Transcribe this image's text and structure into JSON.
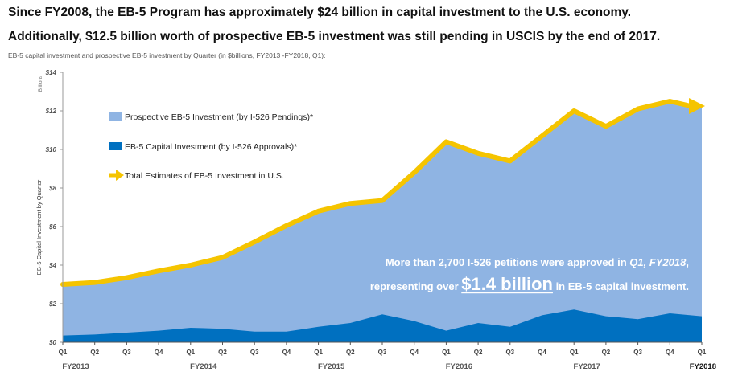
{
  "headline": {
    "line1": "Since FY2008, the EB-5 Program has approximately $24  billion in capital investment to the U.S. economy.",
    "line2": "Additionally, $12.5 billion worth of prospective EB-5 investment was still pending in USCIS by the end of 2017."
  },
  "subtitle": "EB-5 capital investment and prospective EB-5 investment by Quarter (in $billions, FY2013 -FY2018, Q1):",
  "colors": {
    "prospective": "#8fb4e3",
    "capital": "#0070c0",
    "total": "#f5c400",
    "text_dark": "#111111"
  },
  "chart_data": {
    "type": "area",
    "title": "",
    "xlabel": "",
    "ylabel": "EB-5 Capital Investment by Quarter",
    "y_unit_label": "Billions",
    "ylim": [
      0,
      14
    ],
    "yticks": [
      "$0",
      "$2",
      "$4",
      "$6",
      "$8",
      "$10",
      "$12",
      "$14"
    ],
    "ytick_values": [
      0,
      2,
      4,
      6,
      8,
      10,
      12,
      14
    ],
    "grid": false,
    "legend_position": "top-left",
    "categories": [
      "Q1",
      "Q2",
      "Q3",
      "Q4",
      "Q1",
      "Q2",
      "Q3",
      "Q4",
      "Q1",
      "Q2",
      "Q3",
      "Q4",
      "Q1",
      "Q2",
      "Q3",
      "Q4",
      "Q1",
      "Q2",
      "Q3",
      "Q4",
      "Q1"
    ],
    "fiscal_years": [
      {
        "label": "FY2013",
        "start_index": 0
      },
      {
        "label": "FY2014",
        "start_index": 4
      },
      {
        "label": "FY2015",
        "start_index": 8
      },
      {
        "label": "FY2016",
        "start_index": 12
      },
      {
        "label": "FY2017",
        "start_index": 16
      },
      {
        "label": "FY2018",
        "start_index": 20
      }
    ],
    "series": [
      {
        "name": "Prospective EB-5 Investment (by I-526 Pendings)*",
        "style": "area",
        "values": [
          2.65,
          2.7,
          2.85,
          3.1,
          3.25,
          3.7,
          4.65,
          5.5,
          6.0,
          6.2,
          5.9,
          7.7,
          9.8,
          8.8,
          8.6,
          9.3,
          10.3,
          9.85,
          10.9,
          11.0,
          10.9
        ]
      },
      {
        "name": "EB-5 Capital Investment (by I-526 Approvals)*",
        "style": "area",
        "values": [
          0.35,
          0.4,
          0.5,
          0.6,
          0.75,
          0.7,
          0.55,
          0.55,
          0.8,
          1.0,
          1.45,
          1.1,
          0.6,
          1.0,
          0.8,
          1.4,
          1.7,
          1.35,
          1.2,
          1.5,
          1.35
        ]
      },
      {
        "name": "Total Estimates of EB-5 Investment in U.S.",
        "style": "line-arrow",
        "values": [
          3.0,
          3.1,
          3.35,
          3.7,
          4.0,
          4.4,
          5.2,
          6.05,
          6.8,
          7.2,
          7.35,
          8.8,
          10.4,
          9.8,
          9.4,
          10.7,
          12.0,
          11.2,
          12.1,
          12.5,
          12.25
        ]
      }
    ],
    "annotation": {
      "line1_prefix": "More than 2,700 I-526 petitions were approved in ",
      "line1_emph": "Q1, FY2018",
      "line1_suffix": ",",
      "line2_prefix": "representing over ",
      "line2_big": "$1.4 billion",
      "line2_suffix": " in EB-5 capital investment."
    }
  }
}
